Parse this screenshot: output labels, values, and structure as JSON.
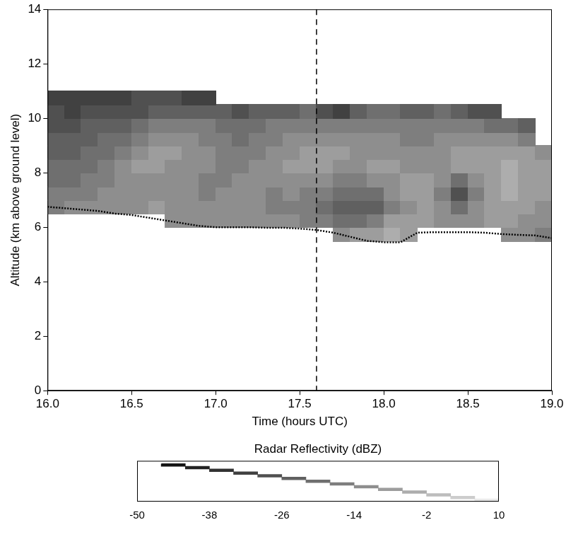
{
  "chart_data": {
    "type": "heatmap",
    "xlabel": "Time (hours UTC)",
    "ylabel": "Altitude (km above ground level)",
    "xlim": [
      16.0,
      19.0
    ],
    "xticks": [
      {
        "value": 16,
        "label": "16.0"
      },
      16.5,
      {
        "value": 17,
        "label": "17.0"
      },
      17.5,
      {
        "value": 18,
        "label": "18.0"
      },
      18.5,
      {
        "value": 19,
        "label": "19.0"
      }
    ],
    "ylim": [
      0,
      14
    ],
    "yticks": [
      0,
      2,
      4,
      6,
      8,
      10,
      12,
      14
    ],
    "grid": false,
    "cells": {
      "x_bins": [
        16.0,
        16.1,
        16.2,
        16.3,
        16.4,
        16.5,
        16.6,
        16.7,
        16.8,
        16.9,
        17.0,
        17.1,
        17.2,
        17.3,
        17.4,
        17.5,
        17.6,
        17.7,
        17.8,
        17.9,
        18.0,
        18.1,
        18.2,
        18.3,
        18.4,
        18.5,
        18.6,
        18.7,
        18.8,
        18.9,
        19.0
      ],
      "y_bins": [
        5.5,
        6.0,
        6.5,
        7.0,
        7.5,
        8.0,
        8.5,
        9.0,
        9.5,
        10.0,
        10.5,
        11.0
      ],
      "values": [
        [
          null,
          null,
          null,
          null,
          null,
          null,
          null,
          null,
          null,
          null,
          null,
          null,
          null,
          null,
          null,
          null,
          null,
          -14,
          -10,
          -8,
          -6,
          -8,
          null,
          null,
          null,
          null,
          null,
          -12,
          -14,
          -16
        ],
        [
          null,
          null,
          null,
          null,
          null,
          null,
          null,
          -12,
          -12,
          -14,
          -14,
          -12,
          -12,
          -14,
          -14,
          -16,
          -18,
          -20,
          -22,
          -18,
          -10,
          -8,
          -10,
          -12,
          -14,
          -12,
          -10,
          -10,
          -12,
          -14
        ],
        [
          -16,
          -14,
          -14,
          -12,
          -12,
          -12,
          -10,
          -12,
          -14,
          -14,
          -12,
          -14,
          -14,
          -16,
          -16,
          -18,
          -22,
          -24,
          -26,
          -24,
          -16,
          -12,
          -10,
          -14,
          -20,
          -14,
          -10,
          -8,
          -10,
          -12
        ],
        [
          -18,
          -18,
          -16,
          -14,
          -14,
          -12,
          -12,
          -14,
          -14,
          -16,
          -14,
          -12,
          -14,
          -16,
          -14,
          -16,
          -18,
          -20,
          -22,
          -20,
          -14,
          -10,
          -10,
          -18,
          -30,
          -18,
          -10,
          -6,
          -8,
          -10
        ],
        [
          -20,
          -20,
          -18,
          -16,
          -14,
          -12,
          -12,
          -12,
          -14,
          -16,
          -16,
          -14,
          -14,
          -12,
          -12,
          -12,
          -14,
          -16,
          -16,
          -14,
          -12,
          -10,
          -10,
          -14,
          -20,
          -12,
          -8,
          -6,
          -8,
          -10
        ],
        [
          -22,
          -22,
          -20,
          -18,
          -14,
          -10,
          -10,
          -12,
          -12,
          -14,
          -16,
          -16,
          -14,
          -12,
          -10,
          -10,
          -10,
          -12,
          -12,
          -10,
          -10,
          -12,
          -12,
          -12,
          -10,
          -8,
          -8,
          -6,
          -8,
          -10
        ],
        [
          -24,
          -24,
          -22,
          -20,
          -16,
          -12,
          -10,
          -10,
          -12,
          -14,
          -16,
          -18,
          -16,
          -14,
          -12,
          -10,
          -10,
          -10,
          -12,
          -12,
          -12,
          -14,
          -14,
          -12,
          -10,
          -10,
          -10,
          -8,
          -10,
          -12
        ],
        [
          -26,
          -26,
          -24,
          -22,
          -20,
          -16,
          -14,
          -12,
          -14,
          -16,
          -18,
          -20,
          -18,
          -16,
          -14,
          -14,
          -12,
          -12,
          -14,
          -14,
          -14,
          -16,
          -16,
          -14,
          -12,
          -12,
          -12,
          -14,
          -16,
          null
        ],
        [
          -28,
          -28,
          -26,
          -26,
          -24,
          -22,
          -18,
          -16,
          -16,
          -18,
          -20,
          -22,
          -20,
          -18,
          -18,
          -16,
          -16,
          -16,
          -18,
          -18,
          -18,
          -18,
          -18,
          -16,
          -16,
          -18,
          -20,
          -22,
          -24,
          null
        ],
        [
          -30,
          -32,
          -30,
          -30,
          -28,
          -28,
          -26,
          -24,
          -24,
          -26,
          -26,
          -28,
          -26,
          -24,
          -24,
          -22,
          -30,
          -32,
          -24,
          -22,
          -22,
          -24,
          -24,
          -22,
          -26,
          -28,
          -30,
          null,
          null,
          null
        ],
        [
          -32,
          -34,
          -34,
          -32,
          -32,
          -30,
          -30,
          -30,
          -32,
          -34,
          null,
          null,
          null,
          null,
          null,
          null,
          null,
          null,
          null,
          null,
          null,
          null,
          null,
          null,
          null,
          null,
          null,
          null,
          null,
          null
        ]
      ]
    },
    "colorbar": {
      "title": "Radar Reflectivity (dBZ)",
      "range": [
        -50,
        10
      ],
      "ticks": [
        -50,
        -38,
        -26,
        -14,
        -2,
        10
      ],
      "colors": [
        "#ffffff",
        "#141414",
        "#232323",
        "#323232",
        "#414141",
        "#505050",
        "#606060",
        "#6f6f6f",
        "#7e7e7e",
        "#8e8e8e",
        "#9d9d9d",
        "#adadad",
        "#bdbdbd",
        "#cdcdcd",
        "#eaeaea"
      ]
    },
    "vline": {
      "value": 17.6,
      "line_style": "dashed"
    },
    "series": [
      {
        "x": [
          16.0,
          16.1,
          16.2,
          16.3,
          16.4,
          16.5,
          16.6,
          16.7,
          16.8,
          16.9,
          17.0,
          17.1,
          17.2,
          17.3,
          17.4,
          17.5,
          17.6,
          17.7,
          17.8,
          17.9,
          18.0,
          18.1,
          18.2,
          18.3,
          18.4,
          18.5,
          18.6,
          18.7,
          18.8,
          18.9,
          19.0
        ],
        "values": [
          6.75,
          6.7,
          6.65,
          6.6,
          6.5,
          6.45,
          6.35,
          6.25,
          6.15,
          6.05,
          6.0,
          6.0,
          6.0,
          5.98,
          5.98,
          5.95,
          5.9,
          5.8,
          5.65,
          5.5,
          5.45,
          5.45,
          5.8,
          5.82,
          5.82,
          5.82,
          5.8,
          5.75,
          5.72,
          5.7,
          5.6
        ],
        "color": "#000000",
        "marker": "none",
        "line_style": "dotted"
      }
    ]
  }
}
